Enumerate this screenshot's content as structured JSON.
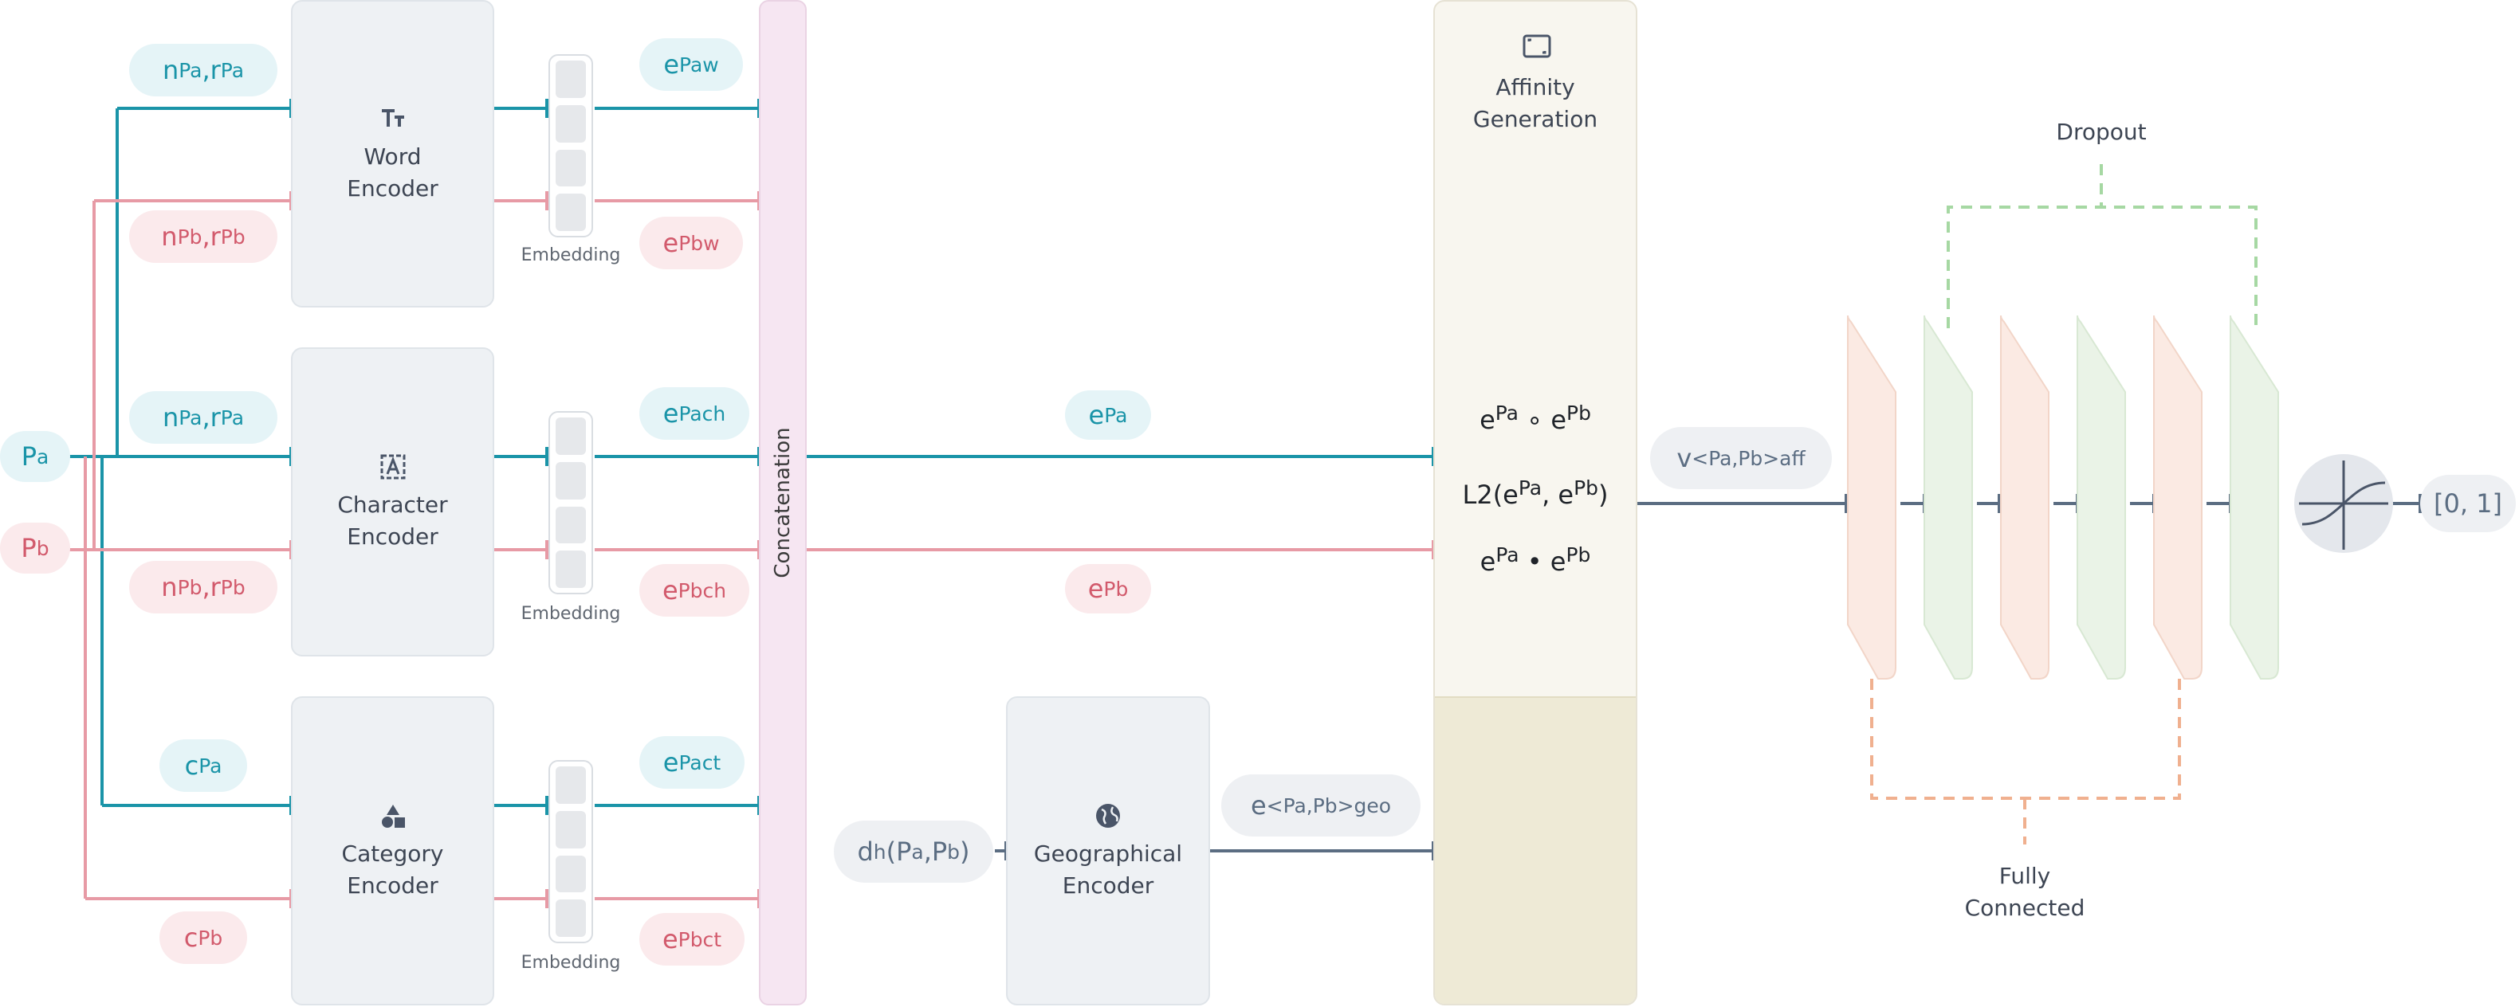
{
  "inputs": {
    "pa": {
      "base": "P",
      "sub": "a"
    },
    "pb": {
      "base": "P",
      "sub": "b"
    }
  },
  "encoders": {
    "word": {
      "line1": "Word",
      "line2": "Encoder",
      "icon": "text-size-icon"
    },
    "character": {
      "line1": "Character",
      "line2": "Encoder",
      "icon": "character-box-icon"
    },
    "category": {
      "line1": "Category",
      "line2": "Encoder",
      "icon": "shapes-icon"
    },
    "geographical": {
      "line1": "Geographical",
      "line2": "Encoder",
      "icon": "globe-icon"
    }
  },
  "embedding_label": "Embedding",
  "input_labels": {
    "word_a": {
      "n": "n",
      "n_sup": "Pa",
      "sep": ",",
      "r": "r",
      "r_sup": "Pa"
    },
    "word_b": {
      "n": "n",
      "n_sup": "Pb",
      "sep": ",",
      "r": "r",
      "r_sup": "Pb"
    },
    "char_a": {
      "n": "n",
      "n_sup": "Pa",
      "sep": ",",
      "r": "r",
      "r_sup": "Pa"
    },
    "char_b": {
      "n": "n",
      "n_sup": "Pb",
      "sep": ",",
      "r": "r",
      "r_sup": "Pb"
    },
    "cat_a": {
      "base": "c",
      "sup": "Pa"
    },
    "cat_b": {
      "base": "c",
      "sup": "Pb"
    }
  },
  "output_labels": {
    "word_a": {
      "base": "e",
      "sup": "Pa",
      "sub": "w"
    },
    "word_b": {
      "base": "e",
      "sup": "Pb",
      "sub": "w"
    },
    "char_a": {
      "base": "e",
      "sup": "Pa",
      "sub": "ch"
    },
    "char_b": {
      "base": "e",
      "sup": "Pb",
      "sub": "ch"
    },
    "cat_a": {
      "base": "e",
      "sup": "Pa",
      "sub": "ct"
    },
    "cat_b": {
      "base": "e",
      "sup": "Pb",
      "sub": "ct"
    }
  },
  "concatenation_label": "Concatenation",
  "concat_outputs": {
    "a": {
      "base": "e",
      "sup": "Pa"
    },
    "b": {
      "base": "e",
      "sup": "Pb"
    }
  },
  "geo": {
    "input": {
      "d": "d",
      "d_sub": "h",
      "open": "(P",
      "a_sub": "a",
      "comma": ",P",
      "b_sub": "b",
      "close": ")"
    },
    "output": {
      "base": "e",
      "sup": "<Pa,Pb>",
      "sub": "geo"
    }
  },
  "affinity": {
    "title_line1": "Affinity",
    "title_line2": "Generation",
    "icon": "frame-icon",
    "op1": {
      "a": "e",
      "a_sup": "Pa",
      "op": " ∘ ",
      "b": "e",
      "b_sup": "Pb"
    },
    "op2": {
      "pre": "L2(e",
      "a_sup": "Pa",
      "mid": ", e",
      "b_sup": "Pb",
      "post": ")"
    },
    "op3": {
      "a": "e",
      "a_sup": "Pa",
      "op": " • ",
      "b": "e",
      "b_sup": "Pb"
    }
  },
  "affinity_vector": {
    "base": "v",
    "sup": "<Pa,Pb>",
    "sub": "aff"
  },
  "network": {
    "dropout_label": "Dropout",
    "fc_line1": "Fully",
    "fc_line2": "Connected",
    "output": "[0, 1]",
    "sigmoid_icon": "sigmoid-icon"
  },
  "colors": {
    "teal": "#1a94a8",
    "pink": "#e79aa5",
    "slate": "#5b6d82",
    "dropout": "#a6d8a3",
    "fc": "#f0b08f"
  }
}
